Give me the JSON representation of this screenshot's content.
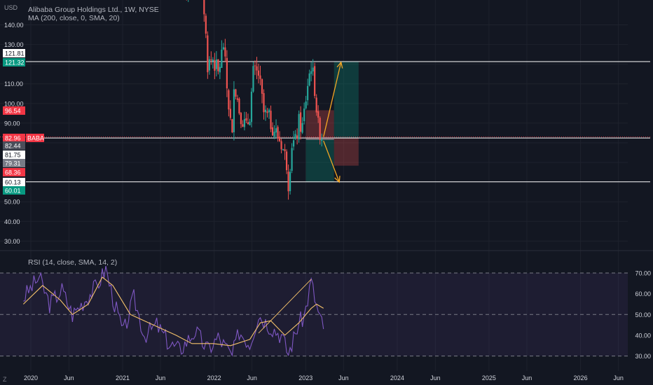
{
  "header": {
    "title": "Alibaba Group Holdings Ltd., 1W, NYSE",
    "ma_legend": "MA (200, close, 0, SMA, 20)",
    "currency": "USD",
    "timezone_button": "Z"
  },
  "rsi_pane": {
    "legend": "RSI (14, close, SMA, 14, 2)"
  },
  "colors": {
    "background": "#131722",
    "up": "#26a69a",
    "down": "#ef5350",
    "rsi": "#7e57c2",
    "rsi_ma": "#f5c26b",
    "arrow": "#f5a623",
    "level_line": "#ffffff",
    "ticker_badge": "#f23645"
  },
  "chart_data": [
    {
      "type": "candlestick",
      "title": "Alibaba Group Holdings Ltd., 1W, NYSE",
      "ticker": "BABA",
      "y_tick_labels": [
        "30.00",
        "40.00",
        "50.00",
        "60.00",
        "70.00",
        "80.00",
        "90.00",
        "100.00",
        "110.00",
        "120.00",
        "130.00",
        "140.00"
      ],
      "ylim": [
        25,
        150
      ],
      "x_tick_labels": [
        "2020",
        "Jun",
        "2021",
        "Jun",
        "2022",
        "Jun",
        "2023",
        "Jun",
        "2024",
        "Jun",
        "2025",
        "Jun",
        "2026",
        "Jun"
      ],
      "price_path": [
        [
          "2021-08-30",
          165
        ],
        [
          "2021-09-13",
          150
        ],
        [
          "2021-10-18",
          178
        ],
        [
          "2021-11-15",
          162
        ],
        [
          "2021-12-06",
          120
        ],
        [
          "2021-12-27",
          123
        ],
        [
          "2022-01-17",
          115
        ],
        [
          "2022-02-07",
          130
        ],
        [
          "2022-02-21",
          108
        ],
        [
          "2022-03-14",
          82
        ],
        [
          "2022-03-21",
          112
        ],
        [
          "2022-04-11",
          97
        ],
        [
          "2022-05-09",
          87
        ],
        [
          "2022-05-23",
          95
        ],
        [
          "2022-06-06",
          115
        ],
        [
          "2022-06-27",
          115
        ],
        [
          "2022-07-18",
          95
        ],
        [
          "2022-08-08",
          92
        ],
        [
          "2022-09-05",
          85
        ],
        [
          "2022-09-26",
          80
        ],
        [
          "2022-10-17",
          70
        ],
        [
          "2022-10-24",
          60
        ],
        [
          "2022-11-07",
          80
        ],
        [
          "2022-11-21",
          80
        ],
        [
          "2022-12-05",
          90
        ],
        [
          "2022-12-19",
          88
        ],
        [
          "2023-01-09",
          110
        ],
        [
          "2023-01-23",
          120
        ],
        [
          "2023-02-06",
          108
        ],
        [
          "2023-02-20",
          88
        ],
        [
          "2023-03-13",
          82
        ]
      ],
      "horizontal_levels": [
        121.32,
        82.44,
        60.13
      ],
      "price_badges": [
        {
          "label": "121.81",
          "color": "#ffffff"
        },
        {
          "label": "121.32",
          "color": "#089981"
        },
        {
          "label": "96.54",
          "color": "#f23645"
        },
        {
          "label": "82.96",
          "color": "#f23645"
        },
        {
          "label": "82.44",
          "color": "#4a4e5a"
        },
        {
          "label": "81.75",
          "color": "#ffffff"
        },
        {
          "label": "79.31",
          "color": "#787b86"
        },
        {
          "label": "68.36",
          "color": "#f23645"
        },
        {
          "label": "60.13",
          "color": "#ffffff"
        },
        {
          "label": "60.01",
          "color": "#089981"
        }
      ],
      "long_position": {
        "entry": 82.44,
        "target": 121.32,
        "stop": 68.36,
        "start": "2023-04-24",
        "end": "2023-07-31"
      },
      "short_position": {
        "entry": 81.75,
        "target": 60.01,
        "stop": 96.54,
        "start": "2023-01-02",
        "end": "2023-04-24"
      },
      "projections": [
        {
          "from": [
            "2023-03-13",
            83
          ],
          "to": [
            "2023-05-22",
            121
          ]
        },
        {
          "from": [
            "2023-03-13",
            81
          ],
          "to": [
            "2023-05-15",
            60
          ]
        }
      ]
    },
    {
      "type": "line",
      "title": "RSI (14, close, SMA, 14, 2)",
      "y_tick_labels": [
        "30.00",
        "40.00",
        "50.00",
        "60.00",
        "70.00"
      ],
      "ylim": [
        27,
        74
      ],
      "bands": [
        30,
        50,
        70
      ],
      "series": [
        {
          "values_path": [
            [
              "2019-12-02",
              58
            ],
            [
              "2020-02-03",
              68
            ],
            [
              "2020-03-16",
              55
            ],
            [
              "2020-05-04",
              62
            ],
            [
              "2020-06-15",
              50
            ],
            [
              "2020-08-03",
              57
            ],
            [
              "2020-09-21",
              64
            ],
            [
              "2020-10-26",
              72
            ],
            [
              "2020-11-30",
              55
            ],
            [
              "2021-01-04",
              41
            ],
            [
              "2021-02-15",
              58
            ],
            [
              "2021-03-29",
              40
            ],
            [
              "2021-05-17",
              45
            ],
            [
              "2021-07-05",
              36
            ],
            [
              "2021-08-16",
              33
            ],
            [
              "2021-10-18",
              42
            ],
            [
              "2021-12-06",
              33
            ],
            [
              "2022-01-17",
              39
            ],
            [
              "2022-03-14",
              30
            ],
            [
              "2022-04-11",
              42
            ],
            [
              "2022-05-23",
              36
            ],
            [
              "2022-06-27",
              50
            ],
            [
              "2022-08-08",
              45
            ],
            [
              "2022-09-26",
              40
            ],
            [
              "2022-10-24",
              31
            ],
            [
              "2022-12-05",
              46
            ],
            [
              "2022-12-26",
              49
            ],
            [
              "2023-01-23",
              66
            ],
            [
              "2023-02-13",
              54
            ],
            [
              "2023-03-13",
              43
            ]
          ]
        },
        {
          "values_path": [
            [
              "2019-12-02",
              55
            ],
            [
              "2020-02-17",
              64
            ],
            [
              "2020-04-27",
              57
            ],
            [
              "2020-06-15",
              50
            ],
            [
              "2020-08-17",
              55
            ],
            [
              "2020-10-12",
              68
            ],
            [
              "2020-11-23",
              64
            ],
            [
              "2021-02-01",
              50
            ],
            [
              "2021-05-03",
              45
            ],
            [
              "2021-08-02",
              40
            ],
            [
              "2021-10-04",
              36
            ],
            [
              "2021-12-27",
              36
            ],
            [
              "2022-03-07",
              35
            ],
            [
              "2022-05-23",
              38
            ],
            [
              "2022-07-04",
              46
            ],
            [
              "2022-08-15",
              47
            ],
            [
              "2022-10-10",
              40
            ],
            [
              "2022-12-05",
              46
            ],
            [
              "2023-01-23",
              53
            ],
            [
              "2023-02-13",
              55
            ],
            [
              "2023-03-13",
              53
            ]
          ]
        }
      ],
      "trendline": {
        "from": [
          "2022-06-27",
          41
        ],
        "to": [
          "2023-01-23",
          67
        ]
      }
    }
  ]
}
